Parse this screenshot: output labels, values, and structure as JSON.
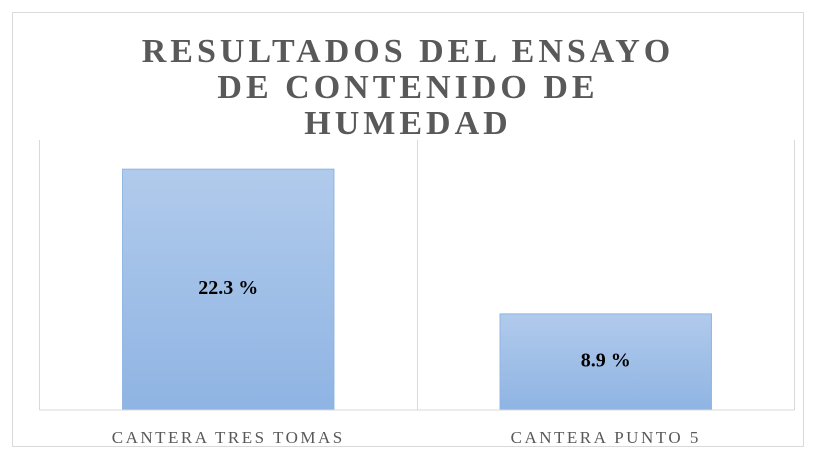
{
  "chart_data": {
    "type": "bar",
    "title": "RESULTADOS DEL ENSAYO DE CONTENIDO DE HUMEDAD",
    "categories": [
      "CANTERA TRES TOMAS",
      "CANTERA PUNTO 5"
    ],
    "values": [
      22.3,
      8.9
    ],
    "value_labels": [
      "22.3 %",
      "8.9 %"
    ],
    "color": "#8fb4e3",
    "ylim": [
      0,
      25
    ]
  }
}
